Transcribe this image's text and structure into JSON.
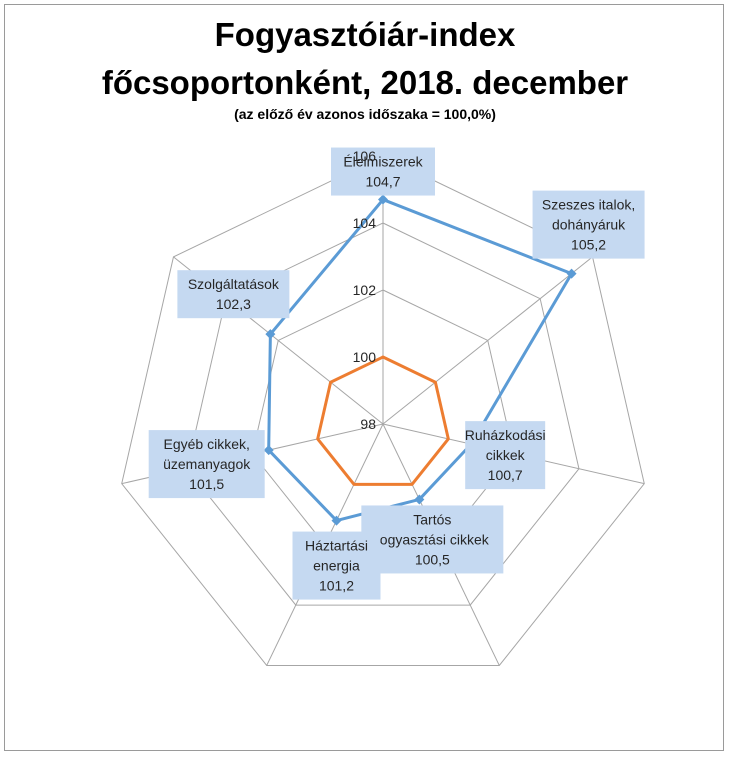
{
  "chart_data": {
    "type": "radar",
    "title_line1": "Fogyasztóiár-index",
    "title_line2": "főcsoportonként, 2018. december",
    "subtitle": "(az előző év azonos időszaka = 100,0%)",
    "categories": [
      [
        "Élelmiszerek"
      ],
      [
        "Szeszes italok,",
        "dohányáruk"
      ],
      [
        "Ruházkodási",
        "cikkek"
      ],
      [
        "Tartós",
        "fogyasztási cikkek"
      ],
      [
        "Háztartási",
        "energia"
      ],
      [
        "Egyéb cikkek,",
        "üzemanyagok"
      ],
      [
        "Szolgáltatások"
      ]
    ],
    "series": [
      {
        "values": [
          104.7,
          105.2,
          100.7,
          100.5,
          101.2,
          101.5,
          102.3
        ],
        "value_labels": [
          "104,7",
          "105,2",
          "100,7",
          "100,5",
          "101,2",
          "101,5",
          "102,3"
        ],
        "color": "#5b9bd5",
        "markers": true
      },
      {
        "values": [
          100,
          100,
          100,
          100,
          100,
          100,
          100
        ],
        "color": "#ed7d31",
        "markers": false
      }
    ],
    "r_axis": {
      "min": 98,
      "max": 106,
      "step": 2,
      "tick_labels": [
        "98",
        "100",
        "102",
        "104",
        "106"
      ]
    },
    "grid": true,
    "label_box_color": "#c5d9f1"
  }
}
